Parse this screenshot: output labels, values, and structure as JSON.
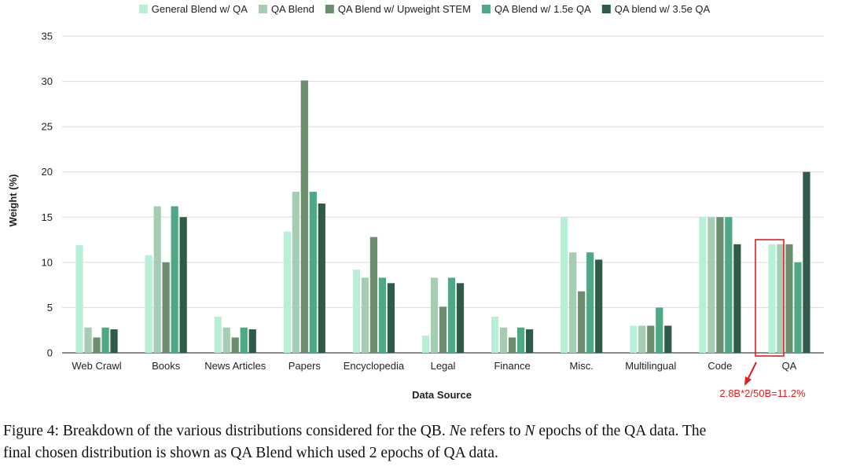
{
  "chart_data": {
    "type": "bar",
    "title": "",
    "xlabel": "Data Source",
    "ylabel": "Weight (%)",
    "ylim": [
      0,
      35
    ],
    "yticks": [
      0,
      5,
      10,
      15,
      20,
      25,
      30,
      35
    ],
    "grid": true,
    "legend_position": "top",
    "categories": [
      "Web Crawl",
      "Books",
      "News Articles",
      "Papers",
      "Encyclopedia",
      "Legal",
      "Finance",
      "Misc.",
      "Multilingual",
      "Code",
      "QA"
    ],
    "series": [
      {
        "name": "General Blend w/ QA",
        "color": "#b7f0d6",
        "values": [
          11.9,
          10.8,
          4.0,
          13.4,
          9.2,
          1.9,
          4.0,
          15.0,
          3.0,
          15.0,
          12.0
        ]
      },
      {
        "name": "QA Blend",
        "color": "#a6ccb3",
        "values": [
          2.8,
          16.2,
          2.8,
          17.8,
          8.3,
          8.3,
          2.8,
          11.1,
          3.0,
          15.0,
          12.0
        ]
      },
      {
        "name": "QA Blend w/ Upweight STEM",
        "color": "#6b8f6c",
        "values": [
          1.7,
          10.0,
          1.7,
          30.1,
          12.8,
          5.1,
          1.7,
          6.8,
          3.0,
          15.0,
          12.0
        ]
      },
      {
        "name": "QA Blend w/ 1.5e QA",
        "color": "#4fa885",
        "values": [
          2.8,
          16.2,
          2.8,
          17.8,
          8.3,
          8.3,
          2.8,
          11.1,
          5.0,
          15.0,
          10.0
        ]
      },
      {
        "name": "QA blend w/ 3.5e QA",
        "color": "#2e5c48",
        "values": [
          2.6,
          15.0,
          2.6,
          16.5,
          7.7,
          7.7,
          2.6,
          10.3,
          3.0,
          12.0,
          20.0
        ]
      }
    ],
    "annotations": [
      {
        "text": "2.8B*2/50B=11.2%",
        "target_category": "QA",
        "color": "#e02020"
      }
    ]
  },
  "caption": {
    "line1_pre": "Figure 4: Breakdown of the various distributions considered for the QB. ",
    "line1_n": "N",
    "line1_mid": "e refers to ",
    "line1_n2": "N",
    "line1_post": " epochs of the QA data. The",
    "line2": "final chosen distribution is shown as QA Blend which used 2 epochs of QA data."
  }
}
